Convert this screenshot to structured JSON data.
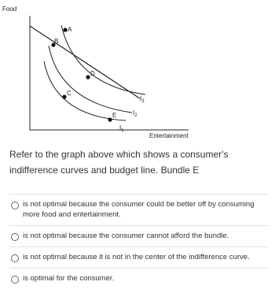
{
  "graph": {
    "y_axis_label": "Food",
    "x_axis_label": "Entertainment",
    "points": [
      "A",
      "B",
      "C",
      "D",
      "E"
    ],
    "curve_labels": [
      {
        "main": "I",
        "sub": "1"
      },
      {
        "main": "I",
        "sub": "2"
      },
      {
        "main": "I",
        "sub": "3"
      }
    ]
  },
  "question": {
    "text": "Refer to the graph above which shows a consumer's indifference curves and budget line. Bundle E",
    "options": [
      "is not optimal because the consumer could be better off by consuming more food and entertainment.",
      "is not optimal because the consumer cannot afford the bundle.",
      "is not optimal because it is not in the center of the indifference curve.",
      "is optimal for the consumer."
    ]
  }
}
